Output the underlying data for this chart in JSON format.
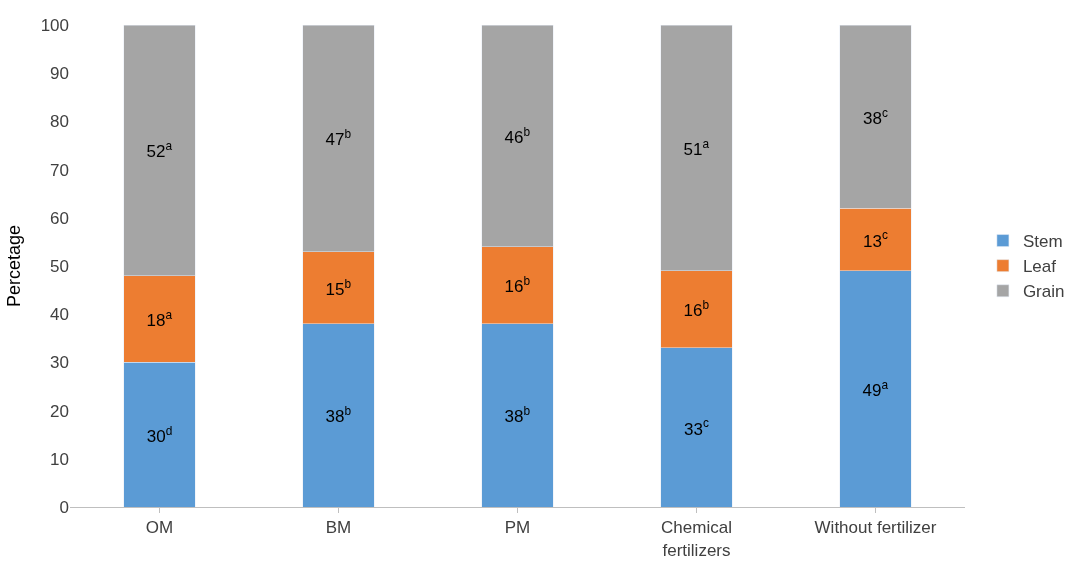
{
  "chart_data": {
    "type": "bar",
    "stacked": true,
    "ylabel": "Percetage",
    "categories": [
      "OM",
      "BM",
      "PM",
      "Chemical\nfertilizers",
      "Without fertilizer"
    ],
    "series": [
      {
        "name": "Stem",
        "color": "#5b9bd5",
        "values": [
          30,
          38,
          38,
          33,
          49
        ],
        "value_labels": [
          "30$^{d}$",
          "38$^{b}$",
          "38$^{b}$",
          "33$^{c}$",
          "49$^{a}$"
        ]
      },
      {
        "name": "Leaf",
        "color": "#ed7d31",
        "values": [
          18,
          15,
          16,
          16,
          13
        ],
        "value_labels": [
          "18$^{a}$",
          "15$^{b}$",
          "16$^{b}$",
          "16$^{b}$",
          "13$^{c}$"
        ]
      },
      {
        "name": "Grain",
        "color": "#a5a5a5",
        "values": [
          52,
          47,
          46,
          51,
          38
        ],
        "value_labels": [
          "52$^{a}$",
          "47$^{b}$",
          "46$^{b}$",
          "51$^{a}$",
          "38$^{c}$"
        ]
      }
    ],
    "ylim": [
      0,
      100
    ],
    "yticks": [
      0,
      10,
      20,
      30,
      40,
      50,
      60,
      70,
      80,
      90,
      100
    ],
    "grid": false,
    "legend": "right"
  }
}
